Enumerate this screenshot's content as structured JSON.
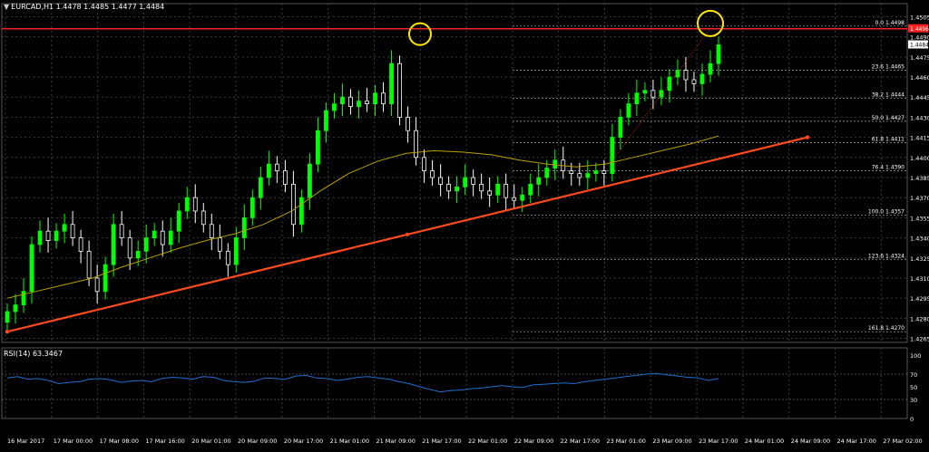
{
  "header": {
    "symbol_line": "EURCAD,H1  1.4478 1.4485 1.4477 1.4484",
    "rsi_line": "RSI(14) 63.3467"
  },
  "colors": {
    "background": "#000000",
    "grid": "#3a3a3a",
    "bull_candle": "#00ff00",
    "bear_candle": "#ffffff",
    "ma": "#b8a000",
    "trendline": "#ff4a1a",
    "resistance": "#ff2020",
    "circle": "#ffe600",
    "fib": "#aaaaaa",
    "rsi": "#1e6fd0",
    "axis_text": "#ffffff"
  },
  "chart_data": [
    {
      "type": "candlestick",
      "symbol": "EURCAD",
      "timeframe": "H1",
      "ylim": [
        1.4262,
        1.4508
      ],
      "y_ticks": [
        "1.4505",
        "1.4490",
        "1.4475",
        "1.4460",
        "1.4445",
        "1.4430",
        "1.4415",
        "1.4400",
        "1.4385",
        "1.4370",
        "1.4355",
        "1.4340",
        "1.4325",
        "1.4310",
        "1.4295",
        "1.4280",
        "1.4265"
      ],
      "x_ticks": [
        "16 Mar 2017",
        "17 Mar 00:00",
        "17 Mar 08:00",
        "17 Mar 16:00",
        "20 Mar 01:00",
        "20 Mar 09:00",
        "20 Mar 17:00",
        "21 Mar 01:00",
        "21 Mar 09:00",
        "21 Mar 17:00",
        "22 Mar 01:00",
        "22 Mar 09:00",
        "22 Mar 17:00",
        "23 Mar 01:00",
        "23 Mar 09:00",
        "23 Mar 17:00",
        "24 Mar 01:00",
        "24 Mar 09:00",
        "24 Mar 17:00",
        "27 Mar 02:00"
      ],
      "current_price": "1.4484",
      "resistance_price": "1.4496",
      "fibonacci_levels": [
        {
          "label": "0.0 1.4498",
          "price": 1.4498
        },
        {
          "label": "23.6 1.4465",
          "price": 1.4465
        },
        {
          "label": "38.2 1.4444",
          "price": 1.4444
        },
        {
          "label": "50.0 1.4427",
          "price": 1.4427
        },
        {
          "label": "61.8 1.4411",
          "price": 1.4411
        },
        {
          "label": "76.4 1.4390",
          "price": 1.439
        },
        {
          "label": "100.0 1.4357",
          "price": 1.4357
        },
        {
          "label": "123.6 1.4324",
          "price": 1.4324
        },
        {
          "label": "161.8 1.4270",
          "price": 1.427
        }
      ],
      "close_path": [
        1.4285,
        1.429,
        1.43,
        1.4335,
        1.4345,
        1.4338,
        1.4345,
        1.435,
        1.434,
        1.433,
        1.431,
        1.43,
        1.432,
        1.435,
        1.434,
        1.4325,
        1.433,
        1.434,
        1.4345,
        1.4335,
        1.4345,
        1.436,
        1.437,
        1.436,
        1.435,
        1.434,
        1.433,
        1.432,
        1.434,
        1.4355,
        1.437,
        1.4385,
        1.4395,
        1.439,
        1.438,
        1.435,
        1.437,
        1.4395,
        1.442,
        1.4435,
        1.444,
        1.4445,
        1.4438,
        1.4442,
        1.444,
        1.4448,
        1.444,
        1.447,
        1.443,
        1.442,
        1.44,
        1.439,
        1.4385,
        1.438,
        1.4375,
        1.4378,
        1.4385,
        1.438,
        1.4375,
        1.4372,
        1.438,
        1.437,
        1.4368,
        1.4372,
        1.438,
        1.4385,
        1.4392,
        1.4398,
        1.439,
        1.4388,
        1.4385,
        1.4388,
        1.439,
        1.4388,
        1.4415,
        1.443,
        1.444,
        1.4448,
        1.445,
        1.4445,
        1.445,
        1.446,
        1.4465,
        1.4458,
        1.4455,
        1.4462,
        1.447,
        1.4484
      ],
      "moving_average": [
        1.4295,
        1.43,
        1.4305,
        1.431,
        1.4318,
        1.4325,
        1.4332,
        1.4338,
        1.4343,
        1.435,
        1.436,
        1.4375,
        1.4388,
        1.4397,
        1.4403,
        1.4405,
        1.4404,
        1.4402,
        1.4398,
        1.4395,
        1.4393,
        1.4395,
        1.44,
        1.4405,
        1.441,
        1.4416
      ],
      "trendline": {
        "start_price": 1.427,
        "end_price": 1.4415,
        "mid_marker": true
      },
      "circles": [
        "peak 22 Mar",
        "peak 27 Mar"
      ]
    },
    {
      "type": "line",
      "indicator": "RSI(14)",
      "value": "63.3467",
      "ylim": [
        0,
        100
      ],
      "y_ticks": [
        "100",
        "70",
        "50",
        "30",
        "0"
      ],
      "values": [
        64,
        66,
        62,
        63,
        60,
        55,
        57,
        58,
        62,
        63,
        61,
        57,
        59,
        60,
        58,
        63,
        65,
        64,
        62,
        66,
        65,
        60,
        58,
        57,
        59,
        64,
        63,
        62,
        67,
        68,
        64,
        63,
        60,
        62,
        65,
        66,
        64,
        62,
        58,
        55,
        50,
        46,
        42,
        44,
        45,
        47,
        48,
        50,
        52,
        50,
        49,
        53,
        54,
        55,
        56,
        55,
        58,
        60,
        62,
        64,
        66,
        68,
        70,
        71,
        69,
        67,
        65,
        64,
        60,
        63
      ]
    }
  ]
}
